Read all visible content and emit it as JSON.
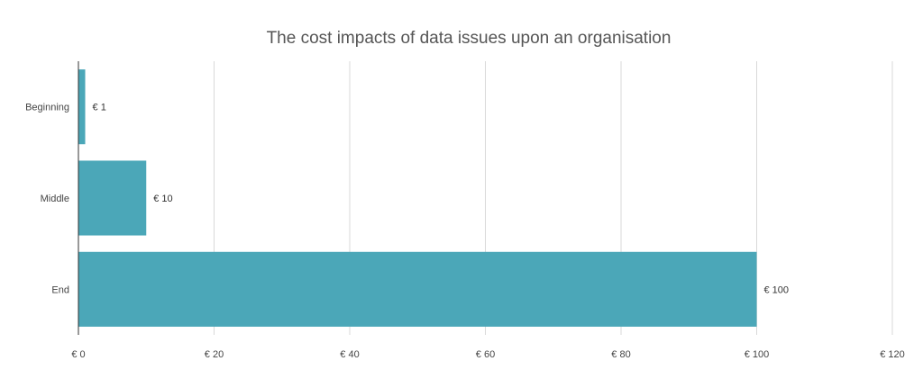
{
  "chart_data": {
    "type": "bar",
    "orientation": "horizontal",
    "title": "The cost impacts of data issues upon an organisation",
    "categories": [
      "Beginning",
      "Middle",
      "End"
    ],
    "values": [
      1,
      10,
      100
    ],
    "data_labels": [
      "€ 1",
      "€ 10",
      "€ 100"
    ],
    "xlim": [
      0,
      120
    ],
    "x_ticks": [
      0,
      20,
      40,
      60,
      80,
      100,
      120
    ],
    "x_tick_labels": [
      "€ 0",
      "€ 20",
      "€ 40",
      "€ 60",
      "€ 80",
      "€ 100",
      "€ 120"
    ],
    "xlabel": "",
    "ylabel": "",
    "grid": "vertical",
    "legend": "none",
    "colors": {
      "bar": "#4ba7b8",
      "grid": "#d9d9d9",
      "axis": "#333333"
    }
  }
}
